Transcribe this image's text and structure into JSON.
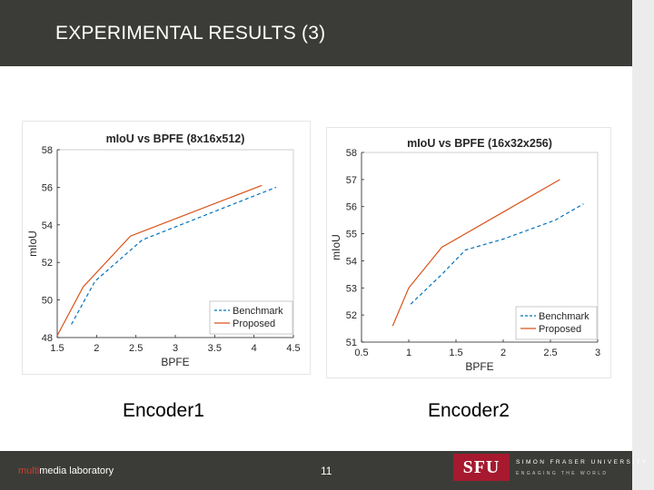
{
  "slide": {
    "title": "EXPERIMENTAL RESULTS (3)",
    "captions": [
      "Encoder1",
      "Encoder2"
    ],
    "page_number": "11"
  },
  "footer": {
    "lab_highlight": "multi",
    "lab_rest": "media laboratory",
    "university_name": "SIMON FRASER UNIVERSITY",
    "university_tagline": "ENGAGING THE WORLD",
    "logo_text": "SFU"
  },
  "colors": {
    "header_bg": "#3b3c37",
    "benchmark": "#0072bd",
    "proposed": "#d95319",
    "sfu_red": "#a6192e"
  },
  "chart_data": [
    {
      "type": "line",
      "title": "mIoU vs BPFE (8x16x512)",
      "xlabel": "BPFE",
      "ylabel": "mIoU",
      "xlim": [
        1.5,
        4.5
      ],
      "ylim": [
        48,
        58
      ],
      "xticks": [
        1.5,
        2,
        2.5,
        3,
        3.5,
        4,
        4.5
      ],
      "xtick_labels": [
        "1.5",
        "2",
        "2.5",
        "3",
        "3.5",
        "4",
        "4.5"
      ],
      "yticks": [
        48,
        50,
        52,
        54,
        56,
        58
      ],
      "ytick_labels": [
        "48",
        "50",
        "52",
        "54",
        "56",
        "58"
      ],
      "legend_position": "bottom-right",
      "series": [
        {
          "name": "Benchmark",
          "style": "dashed",
          "x": [
            1.68,
            1.98,
            2.58,
            4.28
          ],
          "y": [
            48.7,
            51.0,
            53.2,
            56.0
          ]
        },
        {
          "name": "Proposed",
          "style": "solid",
          "x": [
            1.5,
            1.83,
            2.43,
            4.1
          ],
          "y": [
            48.1,
            50.7,
            53.4,
            56.1
          ]
        }
      ]
    },
    {
      "type": "line",
      "title": "mIoU vs BPFE (16x32x256)",
      "xlabel": "BPFE",
      "ylabel": "mIoU",
      "xlim": [
        0.5,
        3
      ],
      "ylim": [
        51,
        58
      ],
      "xticks": [
        0.5,
        1,
        1.5,
        2,
        2.5,
        3
      ],
      "xtick_labels": [
        "0.5",
        "1",
        "1.5",
        "2",
        "2.5",
        "3"
      ],
      "yticks": [
        51,
        52,
        53,
        54,
        55,
        56,
        57,
        58
      ],
      "ytick_labels": [
        "51",
        "52",
        "53",
        "54",
        "55",
        "56",
        "57",
        "58"
      ],
      "legend_position": "bottom-right",
      "series": [
        {
          "name": "Benchmark",
          "style": "dashed",
          "x": [
            1.02,
            1.35,
            1.6,
            2.0,
            2.55,
            2.85
          ],
          "y": [
            52.4,
            53.5,
            54.4,
            54.8,
            55.5,
            56.1
          ]
        },
        {
          "name": "Proposed",
          "style": "solid",
          "x": [
            0.83,
            1.0,
            1.35,
            2.0,
            2.6
          ],
          "y": [
            51.6,
            53.0,
            54.5,
            55.8,
            57.0
          ]
        }
      ]
    }
  ]
}
